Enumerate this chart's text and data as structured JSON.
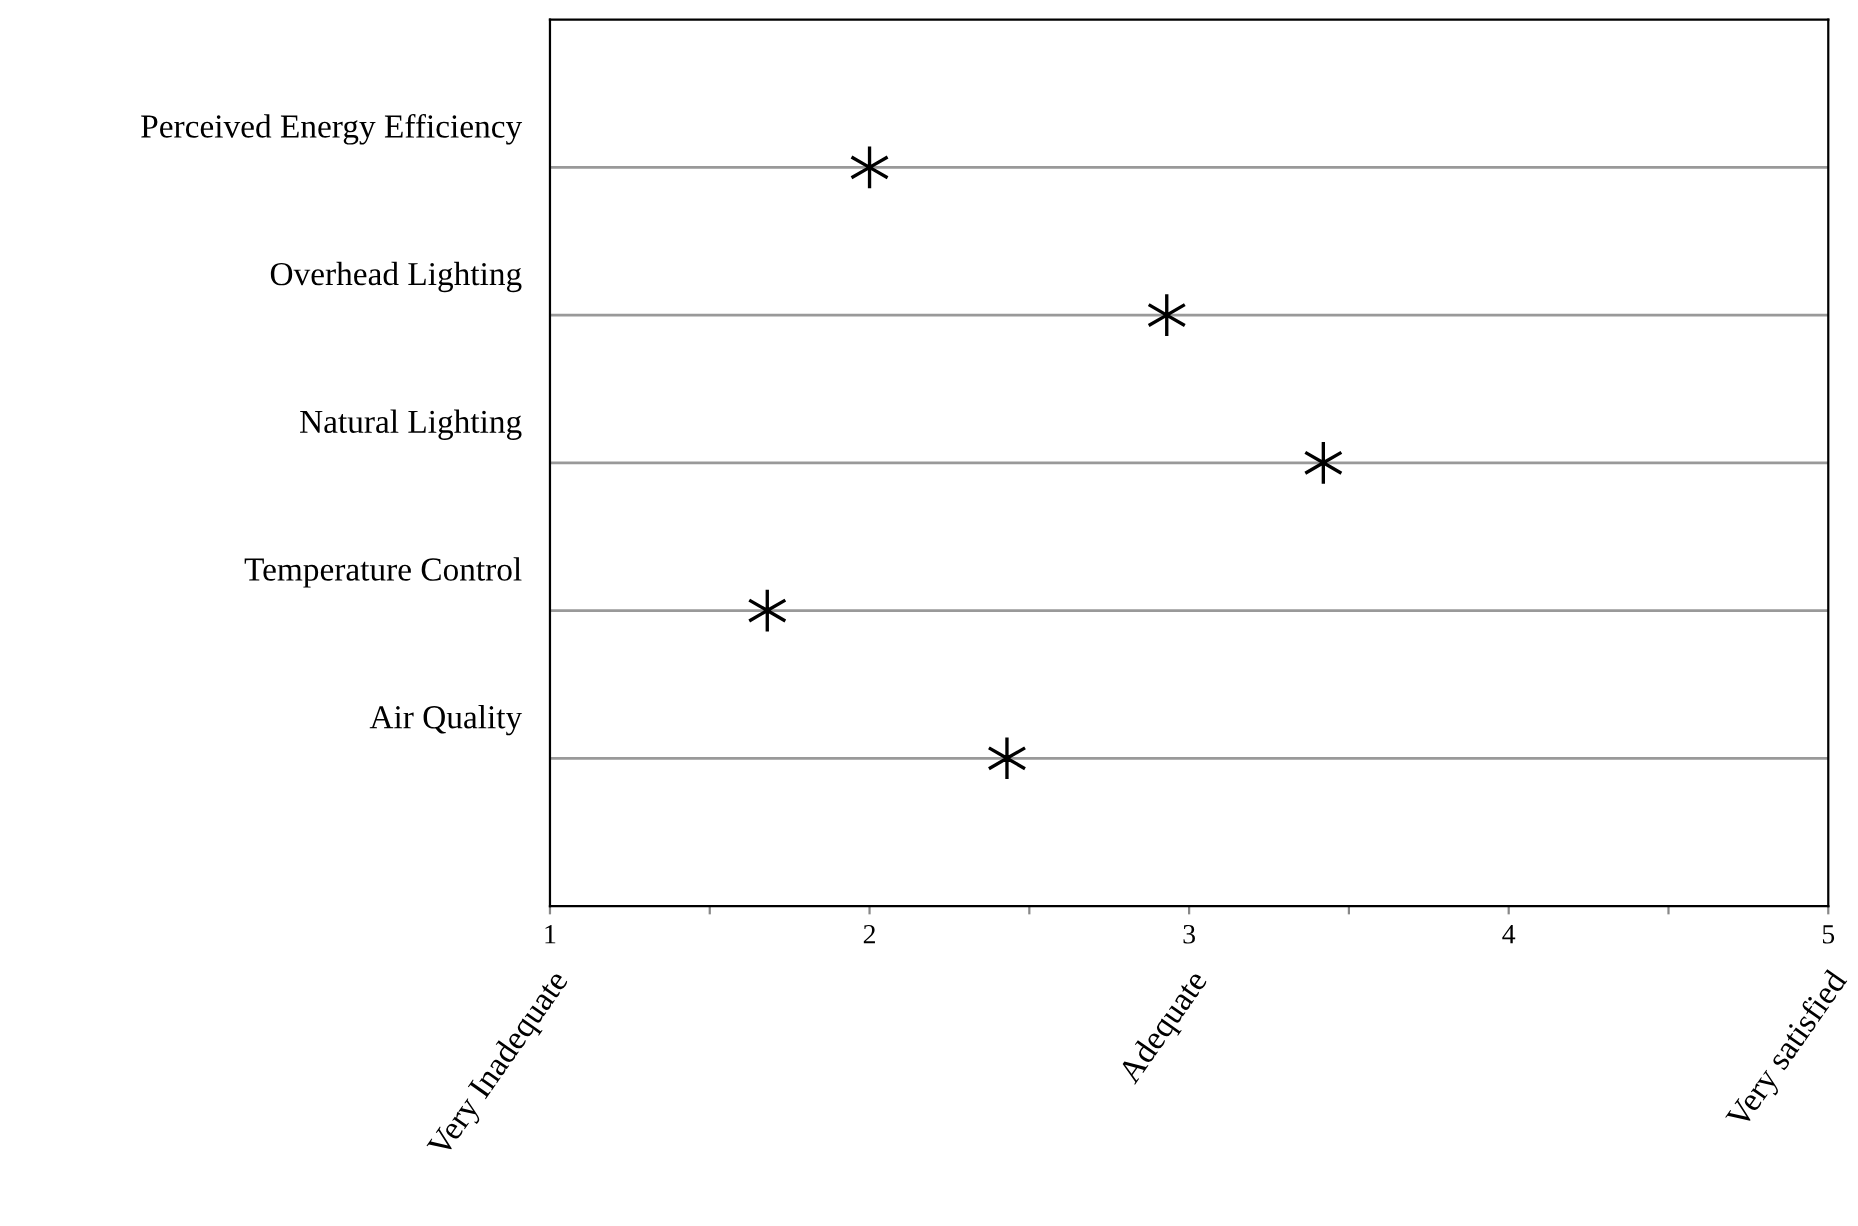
{
  "chart_data": {
    "type": "scatter",
    "orientation": "horizontal",
    "categories": [
      "Perceived Energy Efficiency",
      "Overhead Lighting",
      "Natural Lighting",
      "Temperature Control",
      "Air Quality"
    ],
    "values": [
      2.0,
      2.93,
      3.42,
      1.68,
      2.43
    ],
    "color": "#000000",
    "marker": "cross",
    "xlim": [
      1,
      5
    ],
    "xticks": [
      1,
      {
        "value": 1.5,
        "label": null
      },
      2,
      {
        "value": 2.5,
        "label": null
      },
      3,
      {
        "value": 3.5,
        "label": null
      },
      4,
      {
        "value": 4.5,
        "label": null
      },
      5
    ],
    "grid": "y",
    "annotations": [
      "Very Inadequate",
      "Adequate",
      "Very satisfied"
    ]
  }
}
